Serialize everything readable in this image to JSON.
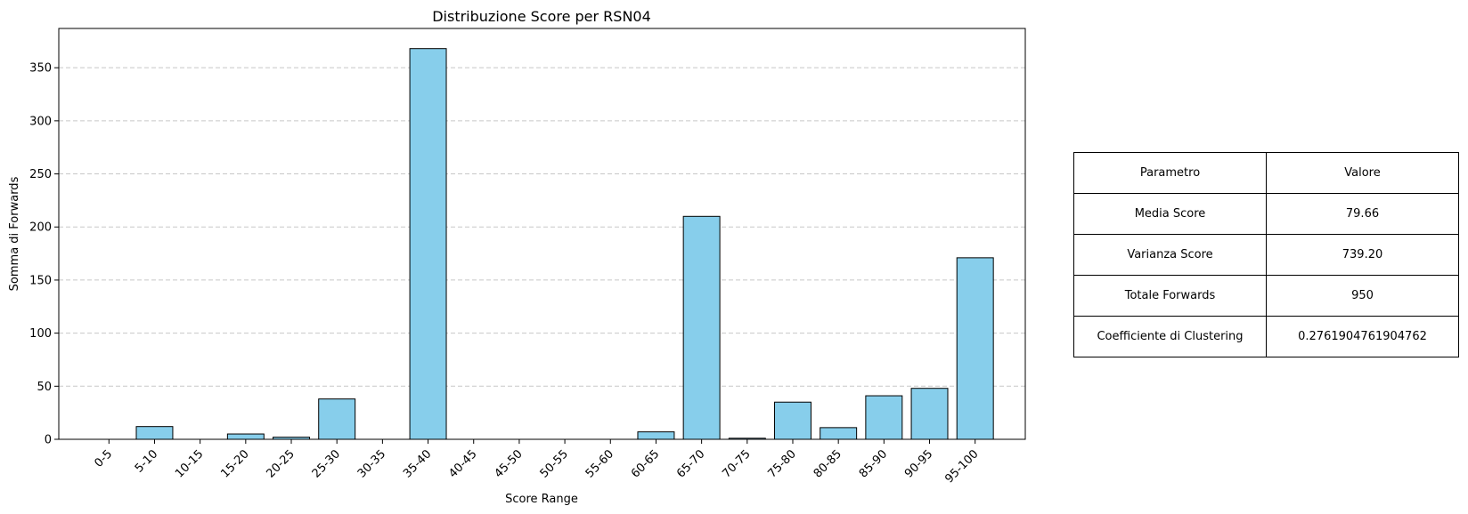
{
  "chart_data": {
    "type": "bar",
    "title": "Distribuzione Score per RSN04",
    "xlabel": "Score Range",
    "ylabel": "Somma di Forwards",
    "categories": [
      "0-5",
      "5-10",
      "10-15",
      "15-20",
      "20-25",
      "25-30",
      "30-35",
      "35-40",
      "40-45",
      "45-50",
      "50-55",
      "55-60",
      "60-65",
      "65-70",
      "70-75",
      "75-80",
      "80-85",
      "85-90",
      "90-95",
      "95-100"
    ],
    "values": [
      0,
      12,
      0,
      5,
      2,
      38,
      0,
      368,
      0,
      0,
      0,
      0,
      7,
      210,
      1,
      35,
      11,
      41,
      48,
      171
    ],
    "ylim": [
      0,
      387
    ],
    "yticks": [
      0,
      50,
      100,
      150,
      200,
      250,
      300,
      350
    ],
    "grid": "y dashed",
    "bar_color": "#87ceeb",
    "edge_color": "#000000"
  },
  "table": {
    "rows": [
      [
        "Parametro",
        "Valore"
      ],
      [
        "Media Score",
        "79.66"
      ],
      [
        "Varianza Score",
        "739.20"
      ],
      [
        "Totale Forwards",
        "950"
      ],
      [
        "Coefficiente di Clustering",
        "0.2761904761904762"
      ]
    ]
  }
}
